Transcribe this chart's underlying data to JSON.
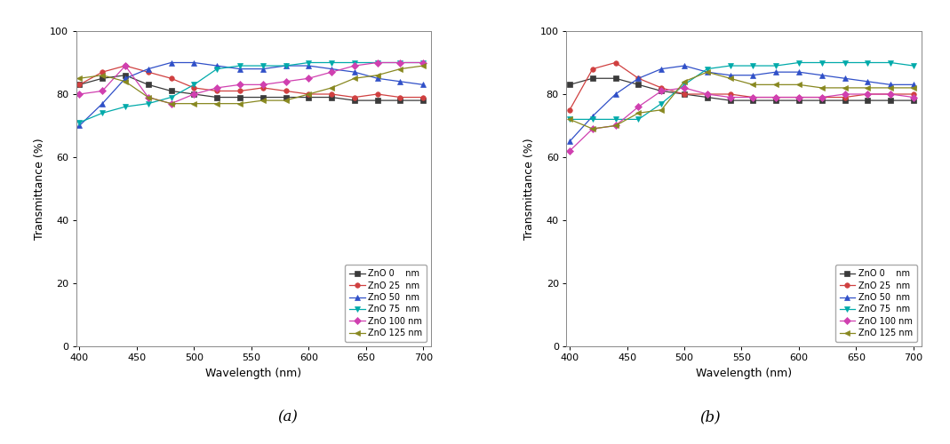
{
  "wavelengths": [
    400,
    420,
    440,
    460,
    480,
    500,
    520,
    540,
    560,
    580,
    600,
    620,
    640,
    660,
    680,
    700
  ],
  "panel_a": {
    "ZnO_0": [
      83,
      85,
      86,
      83,
      81,
      80,
      79,
      79,
      79,
      79,
      79,
      79,
      78,
      78,
      78,
      78
    ],
    "ZnO_25": [
      83,
      87,
      89,
      87,
      85,
      82,
      81,
      81,
      82,
      81,
      80,
      80,
      79,
      80,
      79,
      79
    ],
    "ZnO_50": [
      70,
      77,
      85,
      88,
      90,
      90,
      89,
      88,
      88,
      89,
      89,
      88,
      87,
      85,
      84,
      83
    ],
    "ZnO_75": [
      71,
      74,
      76,
      77,
      79,
      83,
      88,
      89,
      89,
      89,
      90,
      90,
      90,
      90,
      90,
      90
    ],
    "ZnO_100": [
      80,
      81,
      89,
      79,
      77,
      80,
      82,
      83,
      83,
      84,
      85,
      87,
      89,
      90,
      90,
      90
    ],
    "ZnO_125": [
      85,
      86,
      84,
      79,
      77,
      77,
      77,
      77,
      78,
      78,
      80,
      82,
      85,
      86,
      88,
      89
    ]
  },
  "panel_b": {
    "ZnO_0": [
      83,
      85,
      85,
      83,
      81,
      80,
      79,
      78,
      78,
      78,
      78,
      78,
      78,
      78,
      78,
      78
    ],
    "ZnO_25": [
      75,
      88,
      90,
      85,
      82,
      80,
      80,
      80,
      79,
      79,
      79,
      79,
      79,
      80,
      80,
      80
    ],
    "ZnO_50": [
      65,
      73,
      80,
      85,
      88,
      89,
      87,
      86,
      86,
      87,
      87,
      86,
      85,
      84,
      83,
      83
    ],
    "ZnO_75": [
      72,
      72,
      72,
      72,
      77,
      83,
      88,
      89,
      89,
      89,
      90,
      90,
      90,
      90,
      90,
      89
    ],
    "ZnO_100": [
      62,
      69,
      70,
      76,
      81,
      82,
      80,
      79,
      79,
      79,
      79,
      79,
      80,
      80,
      80,
      79
    ],
    "ZnO_125": [
      72,
      69,
      70,
      74,
      75,
      84,
      87,
      85,
      83,
      83,
      83,
      82,
      82,
      82,
      82,
      82
    ]
  },
  "colors": {
    "ZnO_0": "#3a3a3a",
    "ZnO_25": "#d04040",
    "ZnO_50": "#3050c8",
    "ZnO_75": "#00aaaa",
    "ZnO_100": "#d040b0",
    "ZnO_125": "#888820"
  },
  "markers": {
    "ZnO_0": "s",
    "ZnO_25": "o",
    "ZnO_50": "^",
    "ZnO_75": "v",
    "ZnO_100": "D",
    "ZnO_125": "<"
  },
  "legend_labels": {
    "ZnO_0": "ZnO 0    nm",
    "ZnO_25": "ZnO 25  nm",
    "ZnO_50": "ZnO 50  nm",
    "ZnO_75": "ZnO 75  nm",
    "ZnO_100": "ZnO 100 nm",
    "ZnO_125": "ZnO 125 nm"
  },
  "xlabel": "Wavelength (nm)",
  "ylabel": "Transmittance (%)",
  "xlim": [
    397,
    707
  ],
  "ylim": [
    0,
    100
  ],
  "xticks": [
    400,
    450,
    500,
    550,
    600,
    650,
    700
  ],
  "yticks": [
    0,
    20,
    40,
    60,
    80,
    100
  ],
  "label_a": "(a)",
  "label_b": "(b)",
  "markersize": 4,
  "linewidth": 0.9,
  "legend_fontsize": 7,
  "axis_fontsize": 9,
  "tick_fontsize": 8,
  "bg_color": "#f5f5f5"
}
